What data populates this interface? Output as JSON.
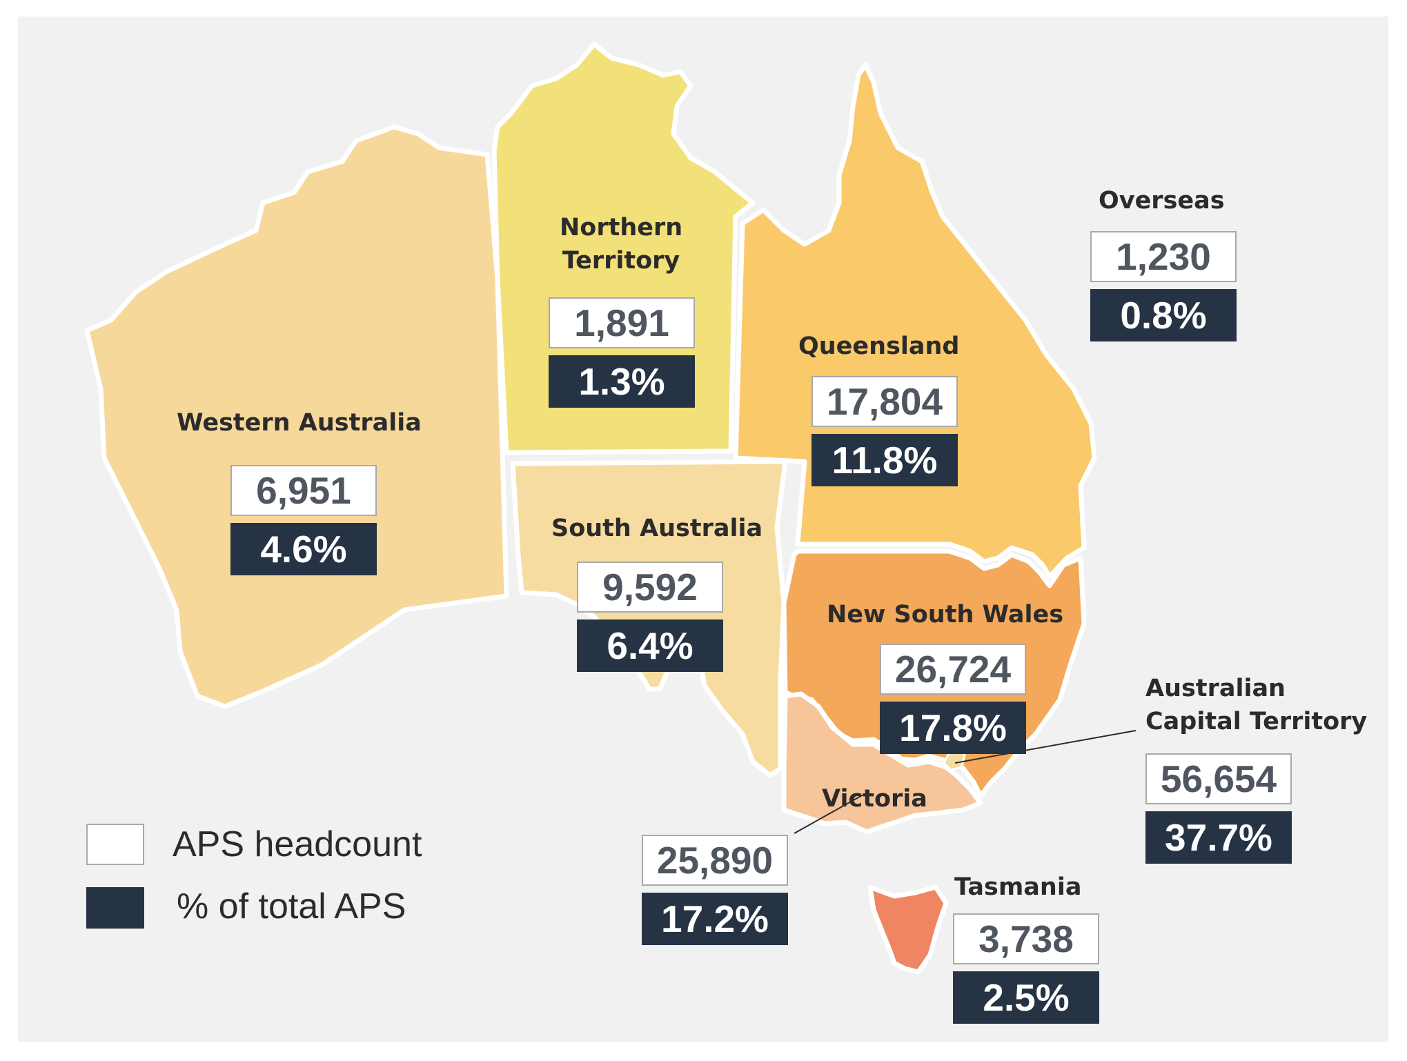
{
  "colors": {
    "background": "#f1f1f1",
    "western_australia": "#f6d89a",
    "northern_territory": "#f2e079",
    "queensland": "#f9c96a",
    "south_australia": "#f7dca2",
    "new_south_wales": "#f3a85a",
    "victoria": "#f7c59a",
    "tasmania": "#ef8562",
    "act": "#f6dca1",
    "headcount_box": "#ffffff",
    "percent_box": "#263345"
  },
  "regions": {
    "western_australia": {
      "name": "Western Australia",
      "headcount": "6,951",
      "percent": "4.6%"
    },
    "northern_territory": {
      "name_line1": "Northern",
      "name_line2": "Territory",
      "headcount": "1,891",
      "percent": "1.3%"
    },
    "queensland": {
      "name": "Queensland",
      "headcount": "17,804",
      "percent": "11.8%"
    },
    "south_australia": {
      "name": "South Australia",
      "headcount": "9,592",
      "percent": "6.4%"
    },
    "new_south_wales": {
      "name": "New South Wales",
      "headcount": "26,724",
      "percent": "17.8%"
    },
    "victoria": {
      "name": "Victoria",
      "headcount": "25,890",
      "percent": "17.2%"
    },
    "tasmania": {
      "name": "Tasmania",
      "headcount": "3,738",
      "percent": "2.5%"
    },
    "act": {
      "name_line1": "Australian",
      "name_line2": "Capital Territory",
      "headcount": "56,654",
      "percent": "37.7%"
    },
    "overseas": {
      "name": "Overseas",
      "headcount": "1,230",
      "percent": "0.8%"
    }
  },
  "legend": {
    "headcount_label": "APS headcount",
    "percent_label": "% of total APS"
  }
}
